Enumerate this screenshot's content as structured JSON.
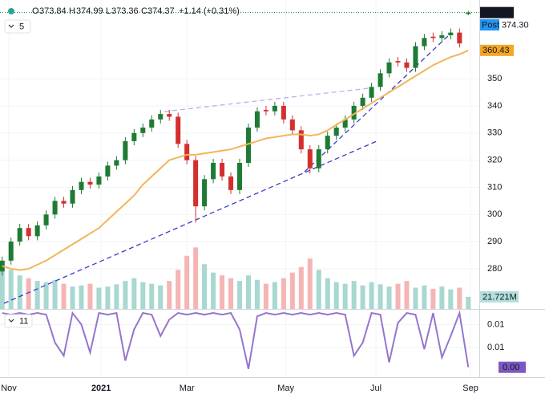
{
  "chart_data": {
    "type": "candlestick",
    "header": {
      "open_key": "O",
      "high_key": "H",
      "low_key": "L",
      "close_key": "C",
      "change": "+1.14 (+0.31%)"
    },
    "legend_counts": {
      "main": 5,
      "indicator": 11
    },
    "up_color": "#1e7b34",
    "down_color": "#d32f2f",
    "x": [
      0,
      4,
      8,
      12,
      16,
      20,
      24,
      28,
      32,
      36,
      40,
      44,
      48,
      52,
      56,
      60,
      64,
      68,
      72,
      76,
      80,
      84,
      88,
      92,
      96,
      100,
      104,
      108,
      112,
      116,
      120,
      124,
      128,
      132,
      136,
      140,
      144,
      148,
      152,
      156,
      160,
      164,
      168,
      172,
      176,
      180,
      184,
      188,
      192,
      196,
      200,
      204,
      208,
      212
    ],
    "open": [
      279,
      283,
      290,
      295,
      292,
      296,
      300,
      305,
      304,
      309,
      312,
      311,
      314,
      318,
      320,
      327,
      330,
      332,
      335,
      337,
      336,
      326,
      320,
      303,
      313,
      319,
      314,
      309,
      319,
      332,
      338.5,
      338,
      340,
      335,
      331,
      324,
      317,
      324,
      329,
      332,
      335,
      340,
      343,
      347,
      352,
      356.5,
      356,
      354,
      362,
      365.5,
      365,
      366,
      367,
      373.84
    ],
    "high": [
      284.5,
      291.5,
      296.5,
      296.5,
      297.5,
      301.5,
      306.5,
      306.5,
      310.5,
      313.5,
      313.5,
      315.5,
      319.5,
      321.5,
      328.5,
      331.5,
      333.5,
      336.5,
      338.5,
      338.5,
      337.5,
      327.5,
      321.5,
      314.5,
      320.5,
      320.5,
      315.5,
      320.5,
      333.5,
      339.5,
      340,
      341.5,
      341.5,
      336.5,
      332.5,
      325.5,
      325.5,
      330.5,
      333.5,
      336.5,
      341.5,
      344.5,
      348.5,
      353.5,
      357.5,
      358,
      357.5,
      363.5,
      366.5,
      367,
      367.5,
      368.5,
      368.5,
      374.99
    ],
    "low": [
      277.5,
      281.5,
      288.5,
      290.5,
      290.5,
      294.5,
      298.5,
      302.5,
      302.5,
      307.5,
      309.5,
      309.5,
      312.5,
      316.5,
      318.5,
      325.5,
      328.5,
      330.5,
      333.5,
      334.5,
      324.5,
      318.5,
      297,
      301.5,
      311.5,
      312.5,
      307.5,
      307.5,
      317.5,
      330.5,
      336.5,
      336.5,
      333.5,
      329.5,
      322.5,
      315,
      315.5,
      322.5,
      327.5,
      330.5,
      333.5,
      338.5,
      341.5,
      345.5,
      350.5,
      354.5,
      352.5,
      352.5,
      360.5,
      363.5,
      363.5,
      364.5,
      361.5,
      373.36
    ],
    "close": [
      283,
      290,
      295,
      292,
      296,
      300,
      305,
      304,
      309,
      312,
      311,
      314,
      318,
      320,
      327,
      330,
      332,
      335,
      337,
      336,
      326,
      320,
      303,
      313,
      319,
      314,
      309,
      319,
      332,
      338,
      338,
      340,
      335,
      331,
      324,
      317,
      324,
      329,
      332,
      335,
      340,
      343,
      347,
      352,
      356,
      356,
      354,
      362,
      365,
      365,
      366,
      367,
      363,
      374.37
    ],
    "post": {
      "label": "Post",
      "value": 374.3,
      "value_label": "374.30",
      "color": "#2196f3"
    },
    "ma": {
      "color": "#f2b55a",
      "label_color": "#f5a623",
      "values": [
        281,
        280,
        279.5,
        280,
        281.5,
        283,
        285,
        287,
        289,
        291,
        293,
        295,
        298,
        301,
        304,
        307,
        311,
        314,
        317,
        320,
        321,
        322,
        322,
        322.5,
        323,
        323.5,
        324,
        325,
        326,
        327,
        328,
        328.5,
        329,
        329.5,
        329.5,
        329,
        329.5,
        331,
        333,
        335,
        337,
        339,
        341,
        343,
        345,
        347,
        349,
        351,
        353,
        355,
        356.5,
        358,
        359,
        360.43
      ]
    },
    "volume": {
      "up_color": "#a8d8d0",
      "down_color": "#f5b5b5",
      "label_color": "#b2dfdb",
      "ylim": [
        0,
        165
      ],
      "values": [
        85,
        70,
        60,
        55,
        50,
        48,
        52,
        45,
        40,
        42,
        45,
        38,
        40,
        44,
        50,
        55,
        48,
        45,
        42,
        50,
        70,
        95,
        110,
        80,
        65,
        60,
        55,
        50,
        60,
        52,
        45,
        48,
        55,
        65,
        75,
        90,
        70,
        55,
        48,
        45,
        50,
        42,
        48,
        44,
        40,
        45,
        50,
        38,
        42,
        36,
        40,
        35,
        38,
        21.721
      ],
      "value_labels": {
        "53": "21.721M"
      }
    },
    "indicator": {
      "color": "#9575cd",
      "ylim": [
        -0.0025,
        0.0175
      ],
      "yticks": [
        {
          "value": 0.0135,
          "label": "0.01"
        },
        {
          "value": 0.0065,
          "label": "0.01"
        }
      ],
      "values": [
        0.017,
        0.0165,
        0.017,
        0.0165,
        0.017,
        0.0165,
        0.008,
        0.004,
        0.017,
        0.0135,
        0.005,
        0.017,
        0.0165,
        0.017,
        0.0025,
        0.012,
        0.017,
        0.0165,
        0.01,
        0.015,
        0.017,
        0.0165,
        0.017,
        0.0165,
        0.017,
        0.0165,
        0.017,
        0.012,
        0.0,
        0.016,
        0.017,
        0.0165,
        0.017,
        0.0165,
        0.017,
        0.0165,
        0.017,
        0.0165,
        0.017,
        0.0165,
        0.004,
        0.008,
        0.017,
        0.0165,
        0.002,
        0.014,
        0.017,
        0.0165,
        0.006,
        0.017,
        0.0035,
        0.01,
        0.017,
        0.0005
      ],
      "value_labels": {
        "53": "0.00"
      }
    },
    "xlim": [
      -1,
      217
    ],
    "xticks": [
      {
        "value": 3,
        "label": "Nov"
      },
      {
        "value": 45,
        "label": "2021"
      },
      {
        "value": 84,
        "label": "Mar"
      },
      {
        "value": 129,
        "label": "May"
      },
      {
        "value": 170,
        "label": "Jul"
      },
      {
        "value": 213,
        "label": "Sep"
      }
    ],
    "ylim": [
      265.2,
      379
    ],
    "yticks": [
      280,
      290,
      300,
      310,
      320,
      330,
      340,
      350
    ],
    "grid": true
  }
}
